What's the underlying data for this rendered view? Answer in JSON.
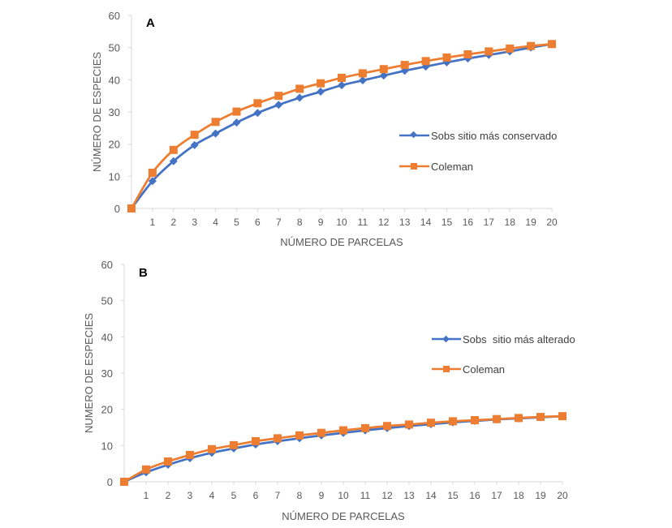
{
  "colors": {
    "observed": "#4472C4",
    "coleman": "#ED7D31",
    "axis": "#D9D9D9",
    "text": "#595959"
  },
  "chart_data": [
    {
      "type": "line",
      "panel_label": "A",
      "title": "",
      "xlabel": "NÚMERO DE PARCELAS",
      "ylabel": "NÚMERO DE ESPECIES",
      "x": [
        0,
        1,
        2,
        3,
        4,
        5,
        6,
        7,
        8,
        9,
        10,
        11,
        12,
        13,
        14,
        15,
        16,
        17,
        18,
        19,
        20
      ],
      "x_tick_labels": [
        "1",
        "2",
        "3",
        "4",
        "5",
        "6",
        "7",
        "8",
        "9",
        "10",
        "11",
        "12",
        "13",
        "14",
        "15",
        "16",
        "17",
        "18",
        "19",
        "20"
      ],
      "y_ticks": [
        0,
        10,
        20,
        30,
        40,
        50,
        60
      ],
      "ylim": [
        0,
        60
      ],
      "xlim": [
        0,
        20
      ],
      "grid": false,
      "legend_position": "right",
      "series": [
        {
          "name": "Sobs sitio más conservado",
          "marker": "diamond",
          "color": "#4472C4",
          "values": [
            0,
            8.5,
            14.7,
            19.7,
            23.3,
            26.7,
            29.7,
            32.2,
            34.4,
            36.3,
            38.3,
            39.8,
            41.3,
            42.8,
            44.1,
            45.4,
            46.6,
            47.7,
            48.8,
            50.0,
            51.1
          ]
        },
        {
          "name": "Coleman",
          "marker": "square",
          "color": "#ED7D31",
          "values": [
            0,
            11.1,
            18.2,
            22.9,
            26.9,
            30.1,
            32.7,
            35.0,
            37.2,
            38.9,
            40.6,
            42.0,
            43.3,
            44.6,
            45.8,
            46.9,
            47.9,
            48.8,
            49.7,
            50.5,
            51.1
          ]
        }
      ]
    },
    {
      "type": "line",
      "panel_label": "B",
      "title": "",
      "xlabel": "NÚMERO DE PARCELAS",
      "ylabel": "NUMERO DE ESPECIES",
      "x": [
        0,
        1,
        2,
        3,
        4,
        5,
        6,
        7,
        8,
        9,
        10,
        11,
        12,
        13,
        14,
        15,
        16,
        17,
        18,
        19,
        20
      ],
      "x_tick_labels": [
        "1",
        "2",
        "3",
        "4",
        "5",
        "6",
        "7",
        "8",
        "9",
        "10",
        "11",
        "12",
        "13",
        "14",
        "15",
        "16",
        "17",
        "18",
        "19",
        "20"
      ],
      "y_ticks": [
        0,
        10,
        20,
        30,
        40,
        50,
        60
      ],
      "ylim": [
        0,
        60
      ],
      "xlim": [
        0,
        20
      ],
      "grid": false,
      "legend_position": "right",
      "series": [
        {
          "name": "Sobs  sitio más alterado",
          "marker": "diamond",
          "color": "#4472C4",
          "values": [
            0,
            2.6,
            4.7,
            6.5,
            8.0,
            9.2,
            10.3,
            11.2,
            12.0,
            12.8,
            13.5,
            14.2,
            14.8,
            15.4,
            15.9,
            16.4,
            16.8,
            17.2,
            17.5,
            17.8,
            18.1
          ]
        },
        {
          "name": "Coleman",
          "marker": "square",
          "color": "#ED7D31",
          "values": [
            0,
            3.4,
            5.6,
            7.4,
            9.0,
            10.1,
            11.2,
            12.0,
            12.8,
            13.5,
            14.2,
            14.8,
            15.4,
            15.8,
            16.3,
            16.7,
            17.0,
            17.3,
            17.6,
            17.9,
            18.1
          ]
        }
      ]
    }
  ]
}
